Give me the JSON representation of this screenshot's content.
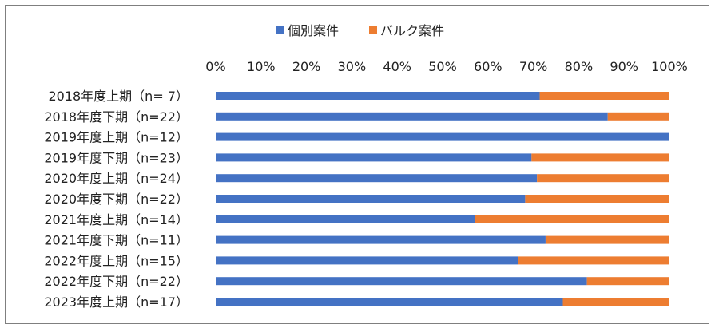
{
  "chart_data": {
    "type": "bar",
    "orientation": "horizontal",
    "stacked": "percent",
    "categories": [
      "2018年度上期（n=  7）",
      "2018年度下期（n=22）",
      "2019年度上期（n=12）",
      "2019年度下期（n=23）",
      "2020年度上期（n=24）",
      "2020年度下期（n=22）",
      "2021年度上期（n=14）",
      "2021年度下期（n=11）",
      "2022年度上期（n=15）",
      "2022年度下期（n=22）",
      "2023年度上期（n=17）"
    ],
    "series": [
      {
        "name": "個別案件",
        "color": "#4472C4",
        "values": [
          71.4,
          86.4,
          100,
          69.6,
          70.8,
          68.2,
          57.1,
          72.7,
          66.7,
          81.8,
          76.5
        ]
      },
      {
        "name": "バルク案件",
        "color": "#ED7D31",
        "values": [
          28.6,
          13.6,
          0,
          30.4,
          29.2,
          31.8,
          42.9,
          27.3,
          33.3,
          18.2,
          23.5
        ]
      }
    ],
    "xlim": [
      0,
      100
    ],
    "x_ticks": [
      "0%",
      "10%",
      "20%",
      "30%",
      "40%",
      "50%",
      "60%",
      "70%",
      "80%",
      "90%",
      "100%"
    ],
    "legend_position": "top",
    "x_axis_position": "top",
    "grid": false,
    "title": "",
    "xlabel": "",
    "ylabel": ""
  }
}
